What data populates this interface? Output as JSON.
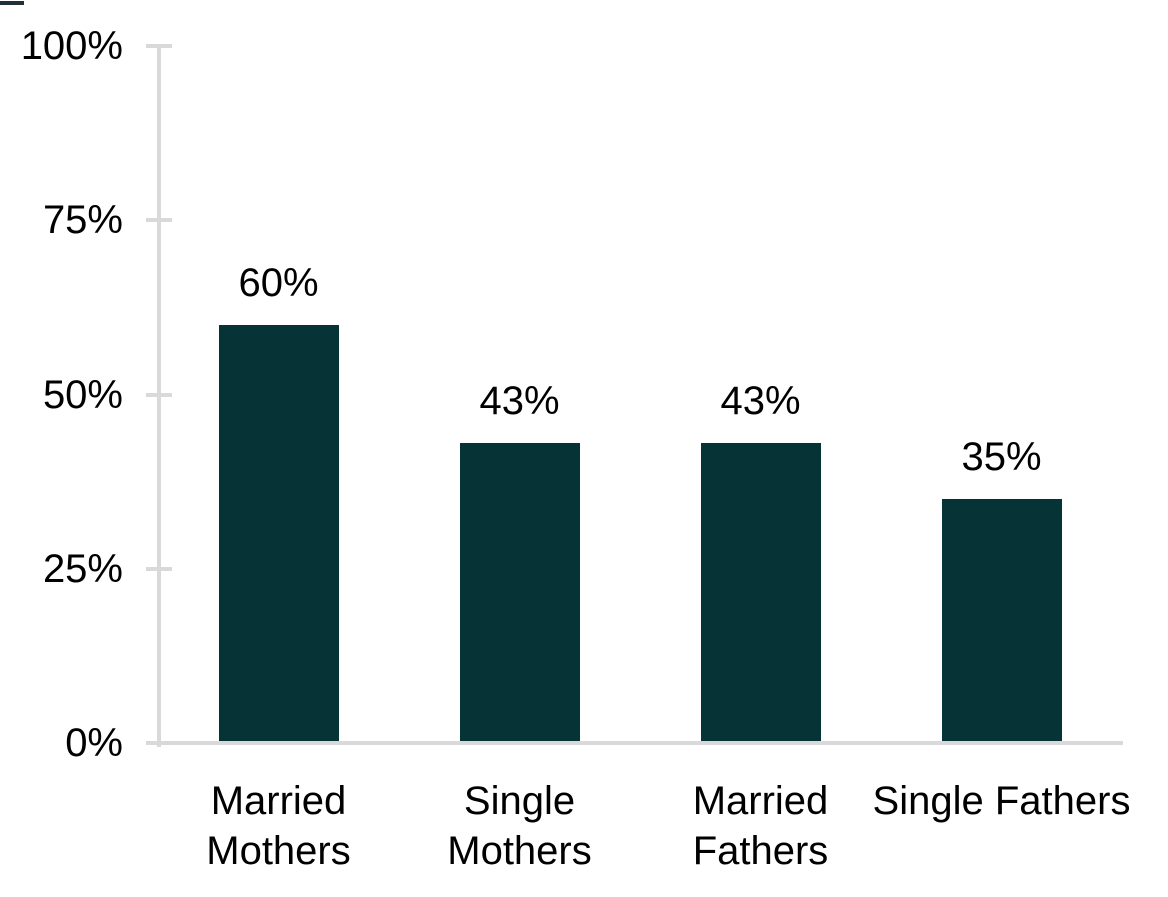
{
  "page": {
    "background_color": "#ffffff",
    "corner_mark_color": "#20303a"
  },
  "chart_data": {
    "type": "bar",
    "title": "",
    "xlabel": "",
    "ylabel": "",
    "categories": [
      "Married Mothers",
      "Single Mothers",
      "Married Fathers",
      "Single Fathers"
    ],
    "category_label_lines": [
      [
        "Married",
        "Mothers"
      ],
      [
        "Single",
        "Mothers"
      ],
      [
        "Married",
        "Fathers"
      ],
      [
        "Single Fathers"
      ]
    ],
    "values": [
      60,
      43,
      43,
      35
    ],
    "value_labels": [
      "60%",
      "43%",
      "43%",
      "35%"
    ],
    "y_axis": {
      "range": [
        0,
        100
      ],
      "ticks": [
        {
          "value": 100,
          "label": "100%"
        },
        {
          "value": 75,
          "label": "75%"
        },
        {
          "value": 50,
          "label": "50%"
        },
        {
          "value": 25,
          "label": "25%"
        },
        {
          "value": 0,
          "label": "0%"
        }
      ]
    },
    "grid": false,
    "legend": null,
    "bar_color": "#053336",
    "axis_color": "#d9d9d9",
    "text_color": "#000000"
  }
}
